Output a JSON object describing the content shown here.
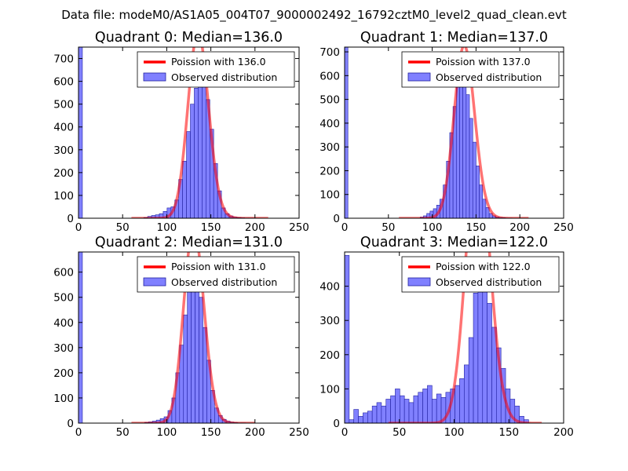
{
  "figure": {
    "suptitle": "Data file: modeM0/AS1A05_004T07_9000002492_16792cztM0_level2_quad_clean.evt"
  },
  "colors": {
    "bar_fill": "#8080ff",
    "bar_edge": "#2020a0",
    "poisson_line": "#ff0000"
  },
  "chart_data": [
    {
      "type": "bar",
      "title": "Quadrant 0: Median=136.0",
      "xlabel": "",
      "ylabel": "",
      "xlim": [
        0,
        250
      ],
      "ylim": [
        0,
        750
      ],
      "xticks": [
        0,
        50,
        100,
        150,
        200,
        250
      ],
      "yticks": [
        0,
        100,
        200,
        300,
        400,
        500,
        600,
        700
      ],
      "grid": false,
      "legend": {
        "position": "top-right",
        "line_label": "Poission with 136.0",
        "bar_label": "Observed distribution"
      },
      "median": 136.0,
      "bin_width": 4.4,
      "histogram": {
        "bin_starts": [
          0,
          74,
          78.4,
          82.8,
          87.2,
          91.6,
          96,
          100.4,
          104.8,
          109.2,
          113.6,
          118,
          122.4,
          126.8,
          131.2,
          135.6,
          140,
          144.4,
          148.8,
          153.2,
          157.6,
          162,
          166.4,
          170.8,
          175.2,
          179.6,
          184,
          188.4,
          192.8,
          197.2
        ],
        "counts": [
          750,
          3,
          8,
          12,
          15,
          20,
          30,
          45,
          50,
          80,
          170,
          250,
          380,
          500,
          570,
          590,
          580,
          520,
          390,
          240,
          120,
          45,
          20,
          10,
          5,
          3,
          2,
          1,
          1,
          1
        ]
      },
      "poisson": {
        "x": [
          60,
          215
        ],
        "mean": 136.0
      }
    },
    {
      "type": "bar",
      "title": "Quadrant 1: Median=137.0",
      "xlabel": "",
      "ylabel": "",
      "xlim": [
        0,
        250
      ],
      "ylim": [
        0,
        720
      ],
      "xticks": [
        0,
        50,
        100,
        150,
        200,
        250
      ],
      "yticks": [
        0,
        100,
        200,
        300,
        400,
        500,
        600,
        700
      ],
      "grid": false,
      "legend": {
        "position": "top-right",
        "line_label": "Poission with 137.0",
        "bar_label": "Observed distribution"
      },
      "median": 137.0,
      "bin_width": 3.75,
      "histogram": {
        "bin_starts": [
          0,
          86.25,
          90,
          93.75,
          97.5,
          101.25,
          105,
          108.75,
          112.5,
          116.25,
          120,
          123.75,
          127.5,
          131.25,
          135,
          138.75,
          142.5,
          146.25,
          150,
          153.75,
          157.5,
          161.25,
          165,
          168.75,
          172.5,
          176.25,
          180,
          183.75,
          187.5
        ],
        "counts": [
          720,
          5,
          10,
          20,
          30,
          40,
          55,
          80,
          140,
          240,
          360,
          470,
          570,
          600,
          560,
          520,
          420,
          320,
          220,
          140,
          80,
          45,
          20,
          10,
          5,
          3,
          2,
          1,
          1
        ]
      },
      "poisson": {
        "x": [
          62,
          210
        ],
        "mean": 137.0
      }
    },
    {
      "type": "bar",
      "title": "Quadrant 2: Median=131.0",
      "xlabel": "",
      "ylabel": "",
      "xlim": [
        0,
        250
      ],
      "ylim": [
        0,
        680
      ],
      "xticks": [
        0,
        50,
        100,
        150,
        200,
        250
      ],
      "yticks": [
        0,
        100,
        200,
        300,
        400,
        500,
        600
      ],
      "grid": false,
      "legend": {
        "position": "top-right",
        "line_label": "Poission with 131.0",
        "bar_label": "Observed distribution"
      },
      "median": 131.0,
      "bin_width": 4.4,
      "histogram": {
        "bin_starts": [
          0,
          75,
          79.4,
          83.8,
          88.2,
          92.6,
          97,
          101.4,
          105.8,
          110.2,
          114.6,
          119,
          123.4,
          127.8,
          132.2,
          136.6,
          141,
          145.4,
          149.8,
          154.2,
          158.6,
          163,
          167.4,
          171.8,
          176.2,
          180.6,
          185
        ],
        "counts": [
          680,
          3,
          5,
          8,
          12,
          18,
          25,
          50,
          100,
          200,
          310,
          430,
          570,
          640,
          620,
          500,
          380,
          250,
          130,
          60,
          30,
          15,
          8,
          4,
          2,
          1,
          1
        ]
      },
      "poisson": {
        "x": [
          60,
          200
        ],
        "mean": 131.0
      }
    },
    {
      "type": "bar",
      "title": "Quadrant 3: Median=122.0",
      "xlabel": "",
      "ylabel": "",
      "xlim": [
        0,
        200
      ],
      "ylim": [
        0,
        500
      ],
      "xticks": [
        0,
        50,
        100,
        150,
        200
      ],
      "yticks": [
        0,
        100,
        200,
        300,
        400
      ],
      "grid": false,
      "legend": {
        "position": "top-right",
        "line_label": "Poission with 122.0",
        "bar_label": "Observed distribution"
      },
      "median": 122.0,
      "bin_width": 4.2,
      "histogram": {
        "bin_starts": [
          0,
          4.2,
          8.4,
          12.6,
          16.8,
          21,
          25.2,
          29.4,
          33.6,
          37.8,
          42,
          46.2,
          50.4,
          54.6,
          58.8,
          63,
          67.2,
          71.4,
          75.6,
          79.8,
          84,
          88.2,
          92.4,
          96.6,
          100.8,
          105,
          109.2,
          113.4,
          117.6,
          121.8,
          126,
          130.2,
          134.4,
          138.6,
          142.8,
          147,
          151.2,
          155.4,
          159.6,
          163.8
        ],
        "counts": [
          490,
          10,
          40,
          20,
          30,
          35,
          50,
          60,
          50,
          70,
          80,
          100,
          80,
          70,
          60,
          80,
          90,
          100,
          110,
          70,
          85,
          75,
          90,
          100,
          110,
          130,
          170,
          250,
          380,
          460,
          420,
          350,
          280,
          220,
          160,
          100,
          70,
          50,
          20,
          10
        ]
      },
      "poisson": {
        "x": [
          40,
          180
        ],
        "mean": 122.0
      }
    }
  ]
}
